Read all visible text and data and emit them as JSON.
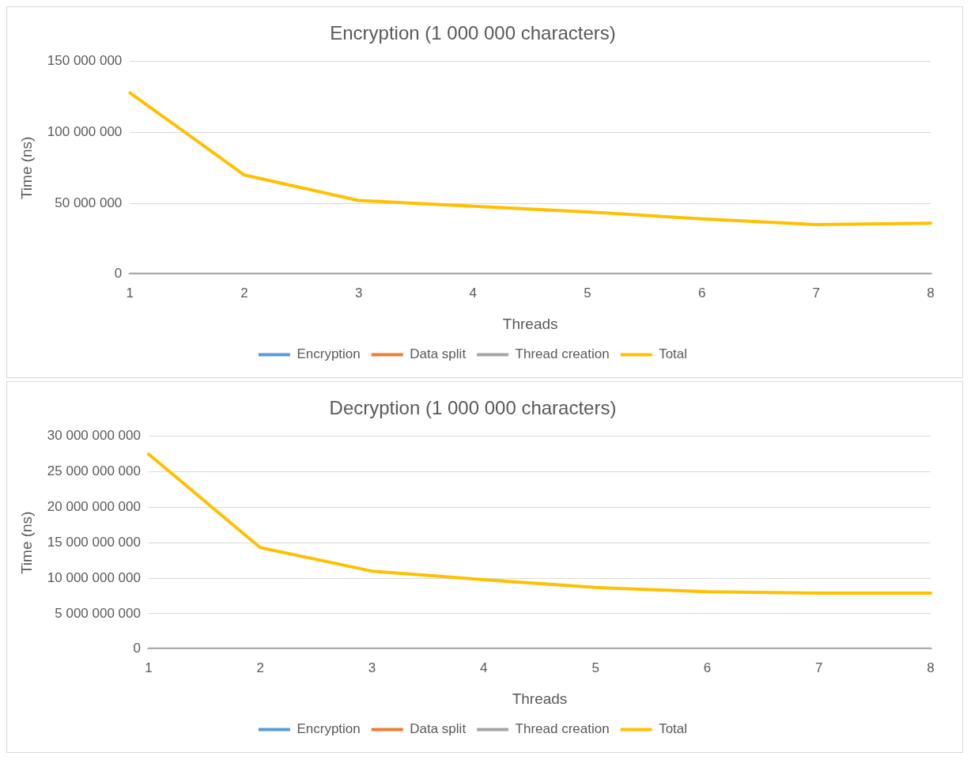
{
  "chart_data": [
    {
      "type": "line",
      "title": "Encryption (1 000 000 characters)",
      "xlabel": "Threads",
      "ylabel": "Time (ns)",
      "categories": [
        "1",
        "2",
        "3",
        "4",
        "5",
        "6",
        "7",
        "8"
      ],
      "series": [
        {
          "name": "Encryption",
          "color": "#5b9bd5",
          "values": [
            null,
            null,
            null,
            null,
            null,
            null,
            null,
            null
          ]
        },
        {
          "name": "Data split",
          "color": "#ed7d31",
          "values": [
            null,
            null,
            null,
            null,
            null,
            null,
            null,
            null
          ]
        },
        {
          "name": "Thread creation",
          "color": "#a5a5a5",
          "values": [
            0,
            0,
            0,
            0,
            0,
            0,
            0,
            0
          ]
        },
        {
          "name": "Total",
          "color": "#ffc000",
          "values": [
            128000000,
            70000000,
            52000000,
            48000000,
            44000000,
            39000000,
            35000000,
            36000000
          ]
        }
      ],
      "ylim": [
        0,
        150000000
      ],
      "yticks": [
        {
          "value": 0,
          "label": "0"
        },
        {
          "value": 50000000,
          "label": "50 000 000"
        },
        {
          "value": 100000000,
          "label": "100 000 000"
        },
        {
          "value": 150000000,
          "label": "150 000 000"
        }
      ],
      "grid": "y",
      "legend": "bottom",
      "marker": "none",
      "line_style": "solid"
    },
    {
      "type": "line",
      "title": "Decryption (1 000 000 characters)",
      "xlabel": "Threads",
      "ylabel": "Time (ns)",
      "categories": [
        "1",
        "2",
        "3",
        "4",
        "5",
        "6",
        "7",
        "8"
      ],
      "series": [
        {
          "name": "Encryption",
          "color": "#5b9bd5",
          "values": [
            null,
            null,
            null,
            null,
            null,
            null,
            null,
            null
          ]
        },
        {
          "name": "Data split",
          "color": "#ed7d31",
          "values": [
            null,
            null,
            null,
            null,
            null,
            null,
            null,
            null
          ]
        },
        {
          "name": "Thread creation",
          "color": "#a5a5a5",
          "values": [
            0,
            0,
            0,
            0,
            0,
            0,
            0,
            0
          ]
        },
        {
          "name": "Total",
          "color": "#ffc000",
          "values": [
            27500000000,
            14300000000,
            11000000000,
            9800000000,
            8700000000,
            8100000000,
            7900000000,
            7900000000
          ]
        }
      ],
      "ylim": [
        0,
        30000000000
      ],
      "yticks": [
        {
          "value": 0,
          "label": "0"
        },
        {
          "value": 5000000000,
          "label": "5 000 000 000"
        },
        {
          "value": 10000000000,
          "label": "10 000 000 000"
        },
        {
          "value": 15000000000,
          "label": "15 000 000 000"
        },
        {
          "value": 20000000000,
          "label": "20 000 000 000"
        },
        {
          "value": 25000000000,
          "label": "25 000 000 000"
        },
        {
          "value": 30000000000,
          "label": "30 000 000 000"
        }
      ],
      "grid": "y",
      "legend": "bottom",
      "marker": "none",
      "line_style": "solid"
    }
  ]
}
